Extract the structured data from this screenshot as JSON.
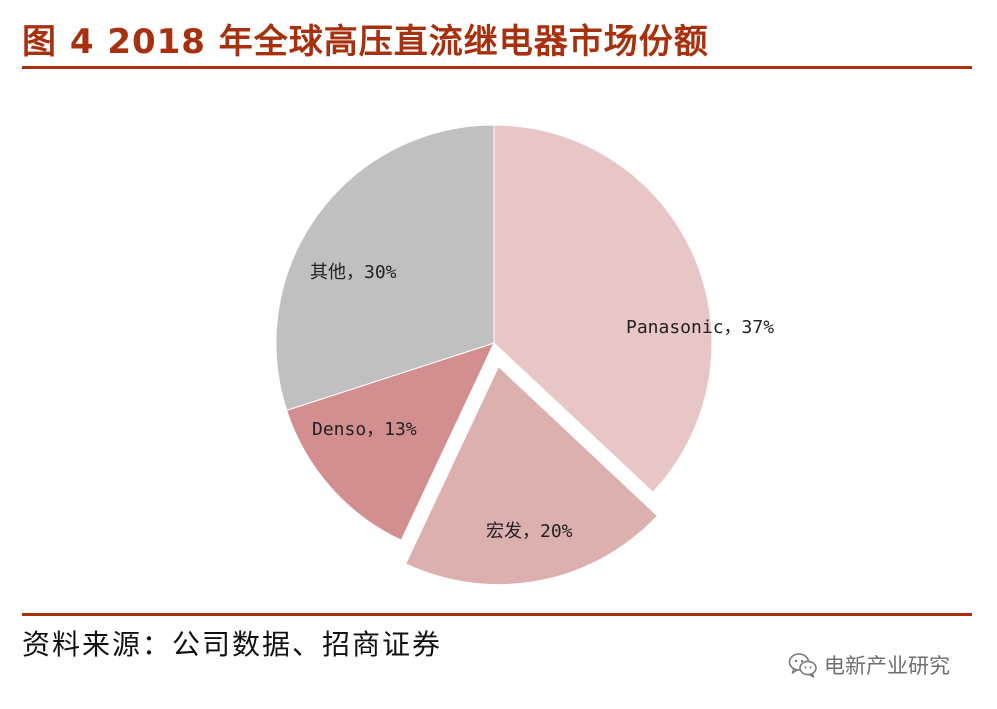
{
  "page": {
    "title": "图 4 2018 年全球高压直流继电器市场份额",
    "source": "资料来源：公司数据、招商证券",
    "watermark": "电新产业研究",
    "watermark_icon": "wechat-icon"
  },
  "chart_data": {
    "type": "pie",
    "title": "",
    "start_angle_deg": 0,
    "direction": "clockwise",
    "label_separator": "，",
    "exploded": [
      "宏发"
    ],
    "slices": [
      {
        "name": "Panasonic",
        "value": 37,
        "label": "37%",
        "color": "#e8c6c6"
      },
      {
        "name": "宏发",
        "value": 20,
        "label": "20%",
        "color": "#ddb0b0"
      },
      {
        "name": "Denso",
        "value": 13,
        "label": "13%",
        "color": "#d38f8f"
      },
      {
        "name": "其他",
        "value": 30,
        "label": "30%",
        "color": "#c0c0c0"
      }
    ],
    "colors": {
      "accent": "#a7300f"
    }
  }
}
